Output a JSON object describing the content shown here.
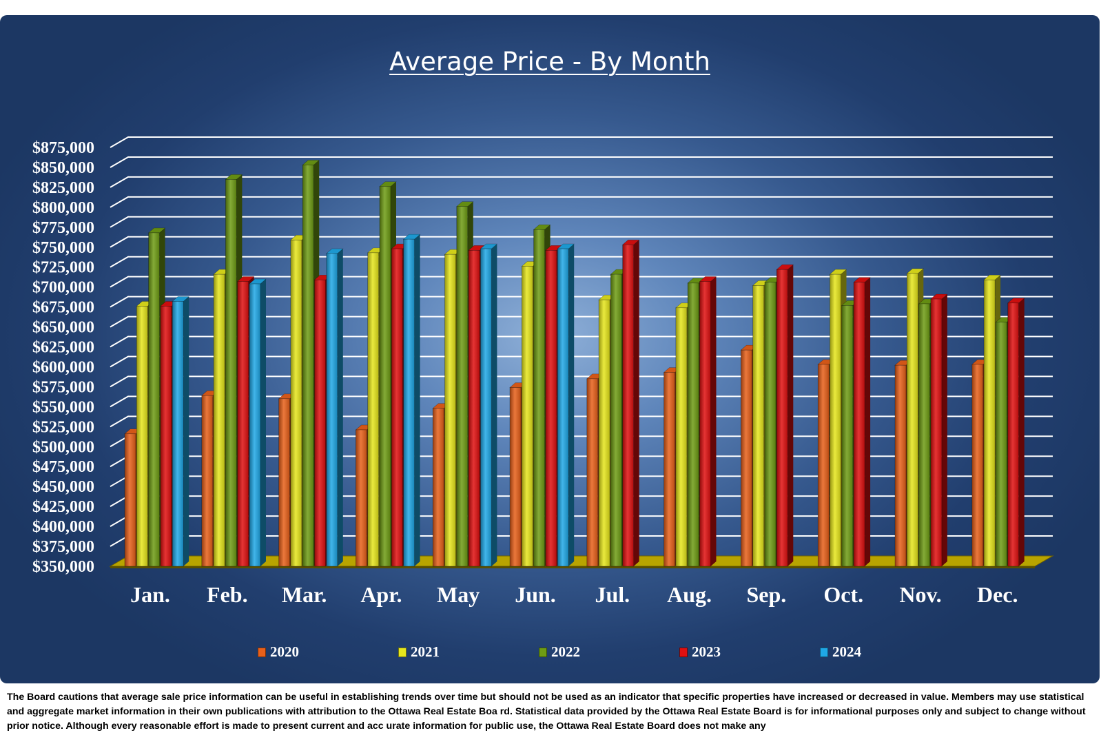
{
  "chart_data": {
    "type": "bar",
    "title": "Average Price - By Month",
    "categories": [
      "Jan.",
      "Feb.",
      "Mar.",
      "Apr.",
      "May",
      "Jun.",
      "Jul.",
      "Aug.",
      "Sep.",
      "Oct.",
      "Nov.",
      "Dec."
    ],
    "series": [
      {
        "name": "2020",
        "color": "#e8601a",
        "values": [
          516000,
          564000,
          560000,
          521000,
          548000,
          574000,
          585000,
          593000,
          621000,
          603000,
          602000,
          603000
        ]
      },
      {
        "name": "2021",
        "color": "#e6e61c",
        "values": [
          676000,
          716000,
          759000,
          743000,
          741000,
          726000,
          684000,
          674000,
          702000,
          716000,
          717000,
          709000
        ]
      },
      {
        "name": "2022",
        "color": "#6e9c14",
        "values": [
          768000,
          835000,
          853000,
          826000,
          801000,
          772000,
          716000,
          705000,
          706000,
          677000,
          679000,
          656000
        ]
      },
      {
        "name": "2023",
        "color": "#e01010",
        "values": [
          676000,
          707000,
          709000,
          748000,
          746000,
          746000,
          753000,
          707000,
          722000,
          706000,
          685000,
          680000
        ]
      },
      {
        "name": "2024",
        "color": "#1fa8e6",
        "values": [
          682000,
          704000,
          742000,
          760000,
          748000,
          748000,
          null,
          null,
          null,
          null,
          null,
          null
        ]
      }
    ],
    "ylim": [
      350000,
      875000
    ],
    "ytick_step": 25000,
    "ytick_labels": [
      "$350,000",
      "$375,000",
      "$400,000",
      "$425,000",
      "$450,000",
      "$475,000",
      "$500,000",
      "$525,000",
      "$550,000",
      "$575,000",
      "$600,000",
      "$625,000",
      "$650,000",
      "$675,000",
      "$700,000",
      "$725,000",
      "$750,000",
      "$775,000",
      "$800,000",
      "$825,000",
      "$850,000",
      "$875,000"
    ],
    "grid": true,
    "legend_position": "bottom"
  },
  "disclaimer": "The Board cautions that average sale price information can be useful in establishing trends over time but should not be used  as an indicator that specific properties have increased or decreased in value.   Members may use statistical and aggregate market information in their own publications with attribution to the Ottawa Real Estate Boa rd. Statistical data provided by the Ottawa Real Estate Board is for informational purposes only and subject to change without prior notice. Although every reasonable effort is made to present current and acc urate information for public use, the Ottawa Real Estate Board does not make any"
}
